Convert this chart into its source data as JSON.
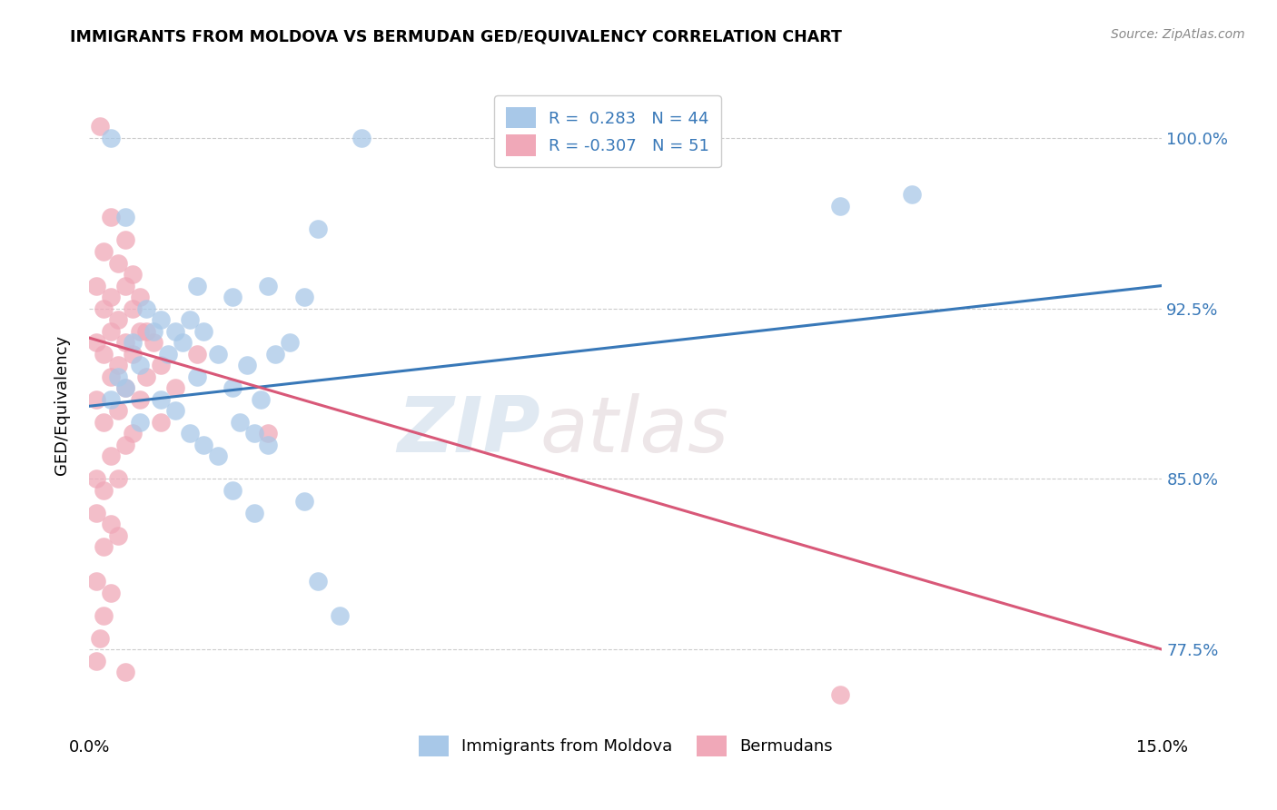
{
  "title": "IMMIGRANTS FROM MOLDOVA VS BERMUDAN GED/EQUIVALENCY CORRELATION CHART",
  "source": "Source: ZipAtlas.com",
  "ylabel": "GED/Equivalency",
  "yticks": [
    77.5,
    85.0,
    92.5,
    100.0
  ],
  "xlim": [
    0.0,
    15.0
  ],
  "ylim": [
    74.0,
    102.5
  ],
  "legend_r_blue": " 0.283",
  "legend_n_blue": "44",
  "legend_r_pink": "-0.307",
  "legend_n_pink": "51",
  "blue_color": "#a8c8e8",
  "pink_color": "#f0a8b8",
  "blue_line_color": "#3878b8",
  "pink_line_color": "#d85878",
  "blue_trendline": [
    [
      0.0,
      88.2
    ],
    [
      15.0,
      93.5
    ]
  ],
  "pink_trendline": [
    [
      0.0,
      91.2
    ],
    [
      15.0,
      77.5
    ]
  ],
  "blue_points": [
    [
      0.3,
      100.0
    ],
    [
      3.8,
      100.0
    ],
    [
      0.5,
      96.5
    ],
    [
      3.2,
      96.0
    ],
    [
      10.5,
      97.0
    ],
    [
      11.5,
      97.5
    ],
    [
      1.5,
      93.5
    ],
    [
      2.0,
      93.0
    ],
    [
      2.5,
      93.5
    ],
    [
      3.0,
      93.0
    ],
    [
      0.8,
      92.5
    ],
    [
      1.0,
      92.0
    ],
    [
      1.2,
      91.5
    ],
    [
      1.4,
      92.0
    ],
    [
      1.6,
      91.5
    ],
    [
      0.6,
      91.0
    ],
    [
      0.9,
      91.5
    ],
    [
      1.1,
      90.5
    ],
    [
      1.3,
      91.0
    ],
    [
      2.8,
      91.0
    ],
    [
      0.7,
      90.0
    ],
    [
      1.8,
      90.5
    ],
    [
      2.2,
      90.0
    ],
    [
      2.6,
      90.5
    ],
    [
      0.4,
      89.5
    ],
    [
      0.5,
      89.0
    ],
    [
      1.5,
      89.5
    ],
    [
      2.0,
      89.0
    ],
    [
      0.3,
      88.5
    ],
    [
      1.0,
      88.5
    ],
    [
      1.2,
      88.0
    ],
    [
      2.4,
      88.5
    ],
    [
      0.7,
      87.5
    ],
    [
      1.4,
      87.0
    ],
    [
      2.1,
      87.5
    ],
    [
      2.3,
      87.0
    ],
    [
      1.6,
      86.5
    ],
    [
      1.8,
      86.0
    ],
    [
      2.5,
      86.5
    ],
    [
      2.0,
      84.5
    ],
    [
      2.3,
      83.5
    ],
    [
      3.0,
      84.0
    ],
    [
      3.2,
      80.5
    ],
    [
      3.5,
      79.0
    ]
  ],
  "pink_points": [
    [
      0.15,
      100.5
    ],
    [
      0.3,
      96.5
    ],
    [
      0.5,
      95.5
    ],
    [
      0.2,
      95.0
    ],
    [
      0.4,
      94.5
    ],
    [
      0.6,
      94.0
    ],
    [
      0.1,
      93.5
    ],
    [
      0.3,
      93.0
    ],
    [
      0.5,
      93.5
    ],
    [
      0.7,
      93.0
    ],
    [
      0.2,
      92.5
    ],
    [
      0.4,
      92.0
    ],
    [
      0.6,
      92.5
    ],
    [
      0.8,
      91.5
    ],
    [
      0.1,
      91.0
    ],
    [
      0.3,
      91.5
    ],
    [
      0.5,
      91.0
    ],
    [
      0.7,
      91.5
    ],
    [
      0.9,
      91.0
    ],
    [
      0.2,
      90.5
    ],
    [
      0.4,
      90.0
    ],
    [
      0.6,
      90.5
    ],
    [
      1.0,
      90.0
    ],
    [
      1.5,
      90.5
    ],
    [
      0.3,
      89.5
    ],
    [
      0.5,
      89.0
    ],
    [
      0.8,
      89.5
    ],
    [
      1.2,
      89.0
    ],
    [
      0.1,
      88.5
    ],
    [
      0.4,
      88.0
    ],
    [
      0.7,
      88.5
    ],
    [
      0.2,
      87.5
    ],
    [
      0.6,
      87.0
    ],
    [
      1.0,
      87.5
    ],
    [
      2.5,
      87.0
    ],
    [
      0.3,
      86.0
    ],
    [
      0.5,
      86.5
    ],
    [
      0.1,
      85.0
    ],
    [
      0.2,
      84.5
    ],
    [
      0.4,
      85.0
    ],
    [
      0.1,
      83.5
    ],
    [
      0.3,
      83.0
    ],
    [
      0.2,
      82.0
    ],
    [
      0.4,
      82.5
    ],
    [
      0.1,
      80.5
    ],
    [
      0.3,
      80.0
    ],
    [
      0.2,
      79.0
    ],
    [
      0.15,
      78.0
    ],
    [
      0.1,
      77.0
    ],
    [
      10.5,
      75.5
    ],
    [
      0.5,
      76.5
    ]
  ]
}
